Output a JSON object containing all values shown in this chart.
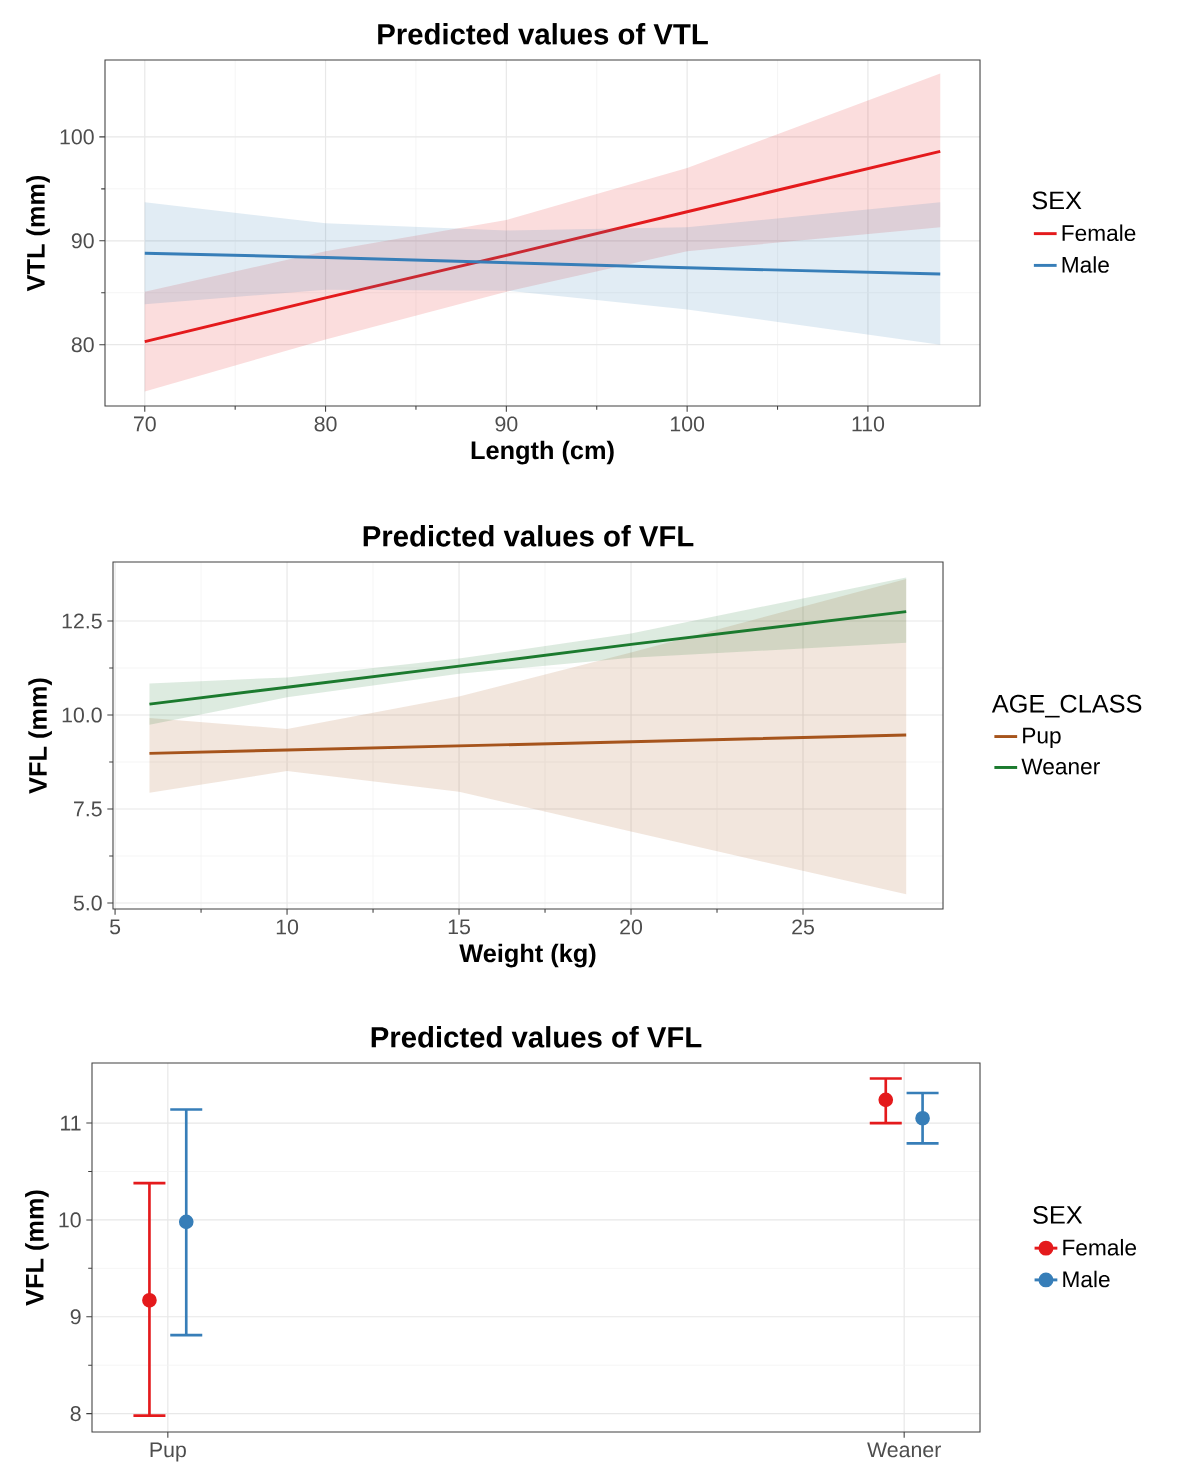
{
  "chart_data": [
    {
      "type": "line",
      "title": "Predicted values of VTL",
      "xlabel": "Length (cm)",
      "ylabel": "VTL (mm)",
      "legend_title": "SEX",
      "legend": "right",
      "grid": true,
      "xlim": [
        67.8,
        116.2
      ],
      "ylim": [
        74.1,
        107.4
      ],
      "xticks": [
        70,
        80,
        90,
        100,
        110
      ],
      "yticks": [
        80,
        90,
        100
      ],
      "series": [
        {
          "name": "Female",
          "color": "#e41a1c",
          "x": [
            70,
            80,
            90,
            100,
            114
          ],
          "values": [
            80.3,
            84.5,
            88.6,
            92.8,
            98.6
          ],
          "lower": [
            75.5,
            80.5,
            85.1,
            89.0,
            91.3
          ],
          "upper": [
            85.1,
            89.0,
            92.0,
            97.0,
            106.1
          ]
        },
        {
          "name": "Male",
          "color": "#377eb8",
          "x": [
            70,
            80,
            90,
            100,
            114
          ],
          "values": [
            88.8,
            88.4,
            87.9,
            87.4,
            86.8
          ],
          "lower": [
            83.9,
            85.3,
            85.2,
            83.4,
            80.0
          ],
          "upper": [
            93.7,
            91.7,
            91.0,
            91.3,
            93.7
          ]
        }
      ]
    },
    {
      "type": "line",
      "title": "Predicted values of VFL",
      "xlabel": "Weight (kg)",
      "ylabel": "VFL (mm)",
      "legend_title": "AGE_CLASS",
      "legend": "right",
      "grid": true,
      "xlim": [
        4.94,
        29.07
      ],
      "ylim": [
        4.84,
        14.07
      ],
      "xticks": [
        5,
        10,
        15,
        20,
        25
      ],
      "yticks": [
        {
          "value": 5,
          "label": "5.0"
        },
        {
          "value": 7.5,
          "label": "7.5"
        },
        {
          "value": 10,
          "label": "10.0"
        },
        {
          "value": 12.5,
          "label": "12.5"
        }
      ],
      "series": [
        {
          "name": "Pup",
          "color": "#a6541c",
          "x": [
            6,
            10,
            15,
            20,
            28
          ],
          "values": [
            8.98,
            9.07,
            9.18,
            9.29,
            9.47
          ],
          "lower": [
            7.93,
            8.51,
            7.96,
            6.9,
            5.23
          ],
          "upper": [
            9.92,
            9.63,
            10.49,
            11.66,
            13.62
          ]
        },
        {
          "name": "Weaner",
          "color": "#1b7a2e",
          "x": [
            6,
            10,
            15,
            20,
            28
          ],
          "values": [
            10.29,
            10.74,
            11.3,
            11.88,
            12.75
          ],
          "lower": [
            9.74,
            10.47,
            11.1,
            11.52,
            11.92
          ],
          "upper": [
            10.84,
            11.0,
            11.5,
            12.17,
            13.66
          ]
        }
      ]
    },
    {
      "type": "scatter",
      "title": "Predicted values of VFL",
      "ylabel": "VFL (mm)",
      "legend_title": "SEX",
      "legend": "right",
      "grid": true,
      "marker": "circle",
      "categories": [
        "Pup",
        "Weaner"
      ],
      "ylim": [
        7.81,
        11.62
      ],
      "yticks": [
        8,
        9,
        10,
        11
      ],
      "series": [
        {
          "name": "Female",
          "color": "#e41a1c",
          "values": [
            9.17,
            11.24
          ],
          "errors": [
            [
              7.98,
              10.38
            ],
            [
              11.0,
              11.46
            ]
          ]
        },
        {
          "name": "Male",
          "color": "#377eb8",
          "values": [
            9.98,
            11.05
          ],
          "errors": [
            [
              8.81,
              11.14
            ],
            [
              10.79,
              11.31
            ]
          ]
        }
      ]
    }
  ]
}
